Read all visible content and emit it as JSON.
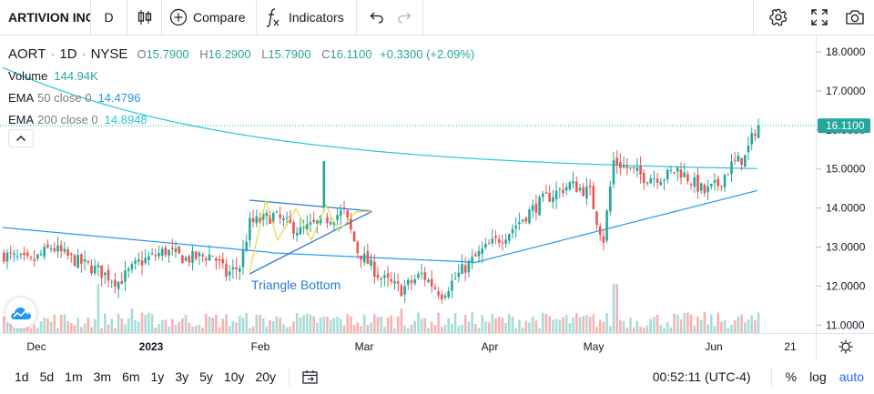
{
  "toolbar": {
    "symbol": "ARTIVION INC",
    "interval": "D",
    "compare_label": "Compare",
    "indicators_label": "Indicators"
  },
  "legend": {
    "symbol": "AORT",
    "interval": "1D",
    "exchange": "NYSE",
    "open_label": "O",
    "open": "15.7900",
    "high_label": "H",
    "high": "16.2900",
    "low_label": "L",
    "low": "15.7900",
    "close_label": "C",
    "close": "16.1100",
    "change": "+0.3300 (+2.09%)",
    "volume_label": "Volume",
    "volume": "144.94K",
    "ema50_name": "EMA",
    "ema50_params": "50 close 0",
    "ema50_value": "14.4796",
    "ema200_name": "EMA",
    "ema200_params": "200 close 0",
    "ema200_value": "14.8948"
  },
  "pattern_label": "Triangle Bottom",
  "price_axis": {
    "ticks": [
      "18.0000",
      "17.0000",
      "16.0000",
      "15.0000",
      "14.0000",
      "13.0000",
      "12.0000",
      "11.0000"
    ],
    "last_price": "16.1100"
  },
  "time_axis": {
    "labels": [
      "Dec",
      "2023",
      "Feb",
      "Mar",
      "Apr",
      "May",
      "Jun",
      "21"
    ]
  },
  "bottombar": {
    "ranges": [
      "1d",
      "5d",
      "1m",
      "3m",
      "6m",
      "1y",
      "3y",
      "5y",
      "10y",
      "20y"
    ],
    "time": "00:52:11 (UTC-4)",
    "percent_label": "%",
    "log_label": "log",
    "auto_label": "auto"
  },
  "colors": {
    "up": "#26a69a",
    "down": "#ef5350",
    "ema50": "#2196f3",
    "ema200": "#26c6da",
    "pattern": "#2b7cd3",
    "pattern_alt": "#e6d84a"
  }
}
